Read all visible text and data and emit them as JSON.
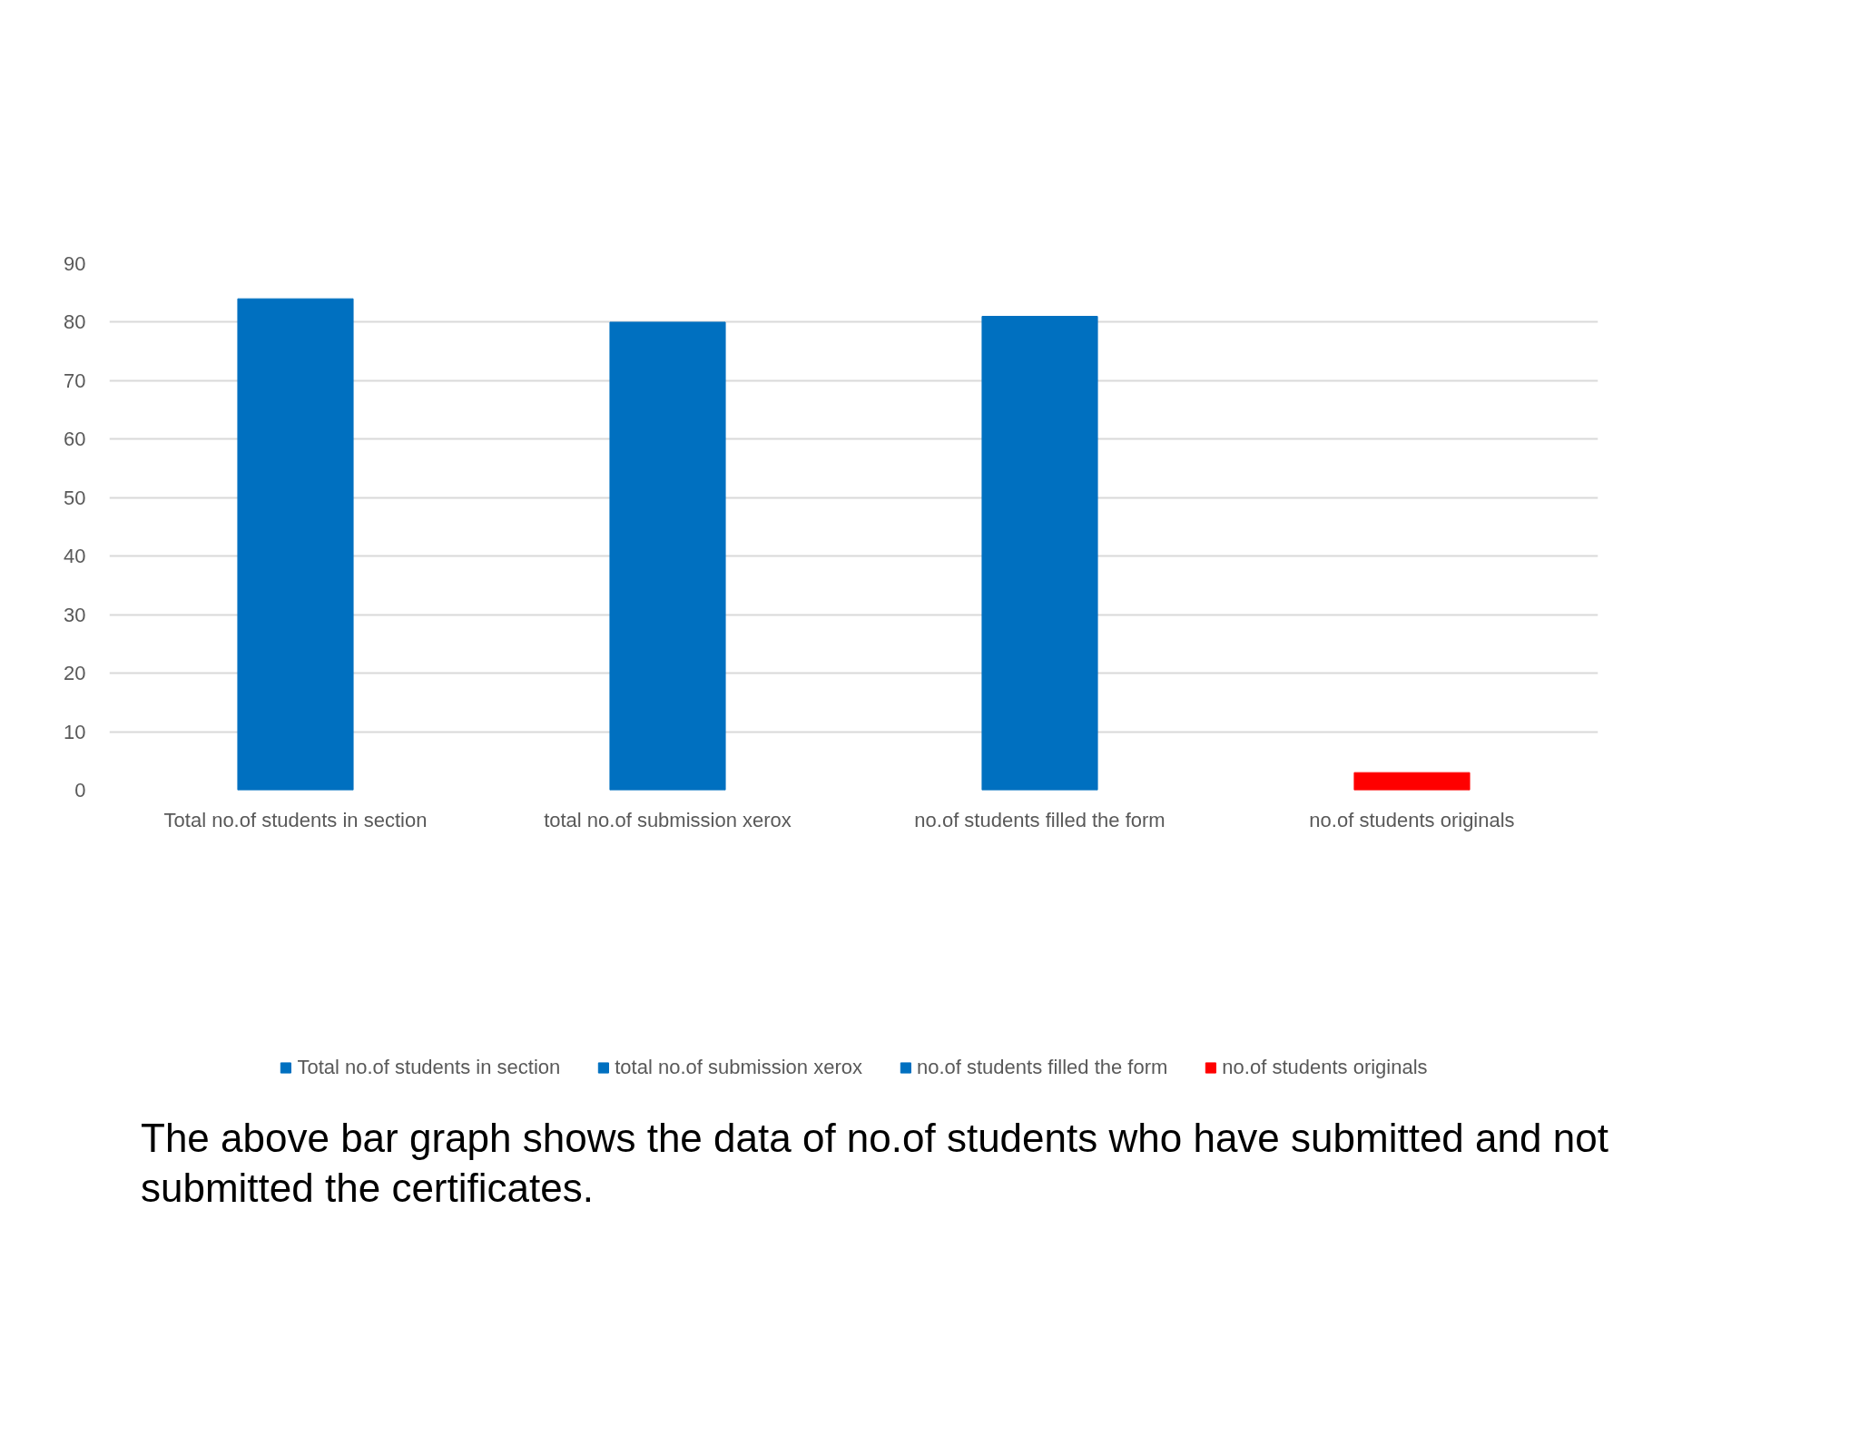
{
  "chart_data": {
    "type": "bar",
    "stacked": true,
    "categories": [
      "Total no.of students in section",
      "total no.of submission xerox",
      "no.of students filled the form",
      "no.of students originals"
    ],
    "series": [
      {
        "name": "Total no.of students in section",
        "color": "#0070c0",
        "values": [
          84,
          null,
          null,
          null
        ]
      },
      {
        "name": "total no.of submission xerox",
        "color": "#0070c0",
        "values": [
          null,
          80,
          null,
          null
        ]
      },
      {
        "name": "no.of students filled the form",
        "color": "#0070c0",
        "values": [
          null,
          null,
          81,
          null
        ]
      },
      {
        "name": "no.of students originals",
        "color": "#ff0000",
        "values": [
          null,
          null,
          null,
          3
        ]
      }
    ],
    "ylim": [
      0,
      90
    ],
    "yticks": [
      0,
      10,
      20,
      30,
      40,
      50,
      60,
      70,
      80,
      90
    ],
    "grid": "y",
    "legend": "bottom",
    "annotations": [
      "The above bar graph shows the data of no.of students who have submitted and not submitted the certificates."
    ]
  }
}
